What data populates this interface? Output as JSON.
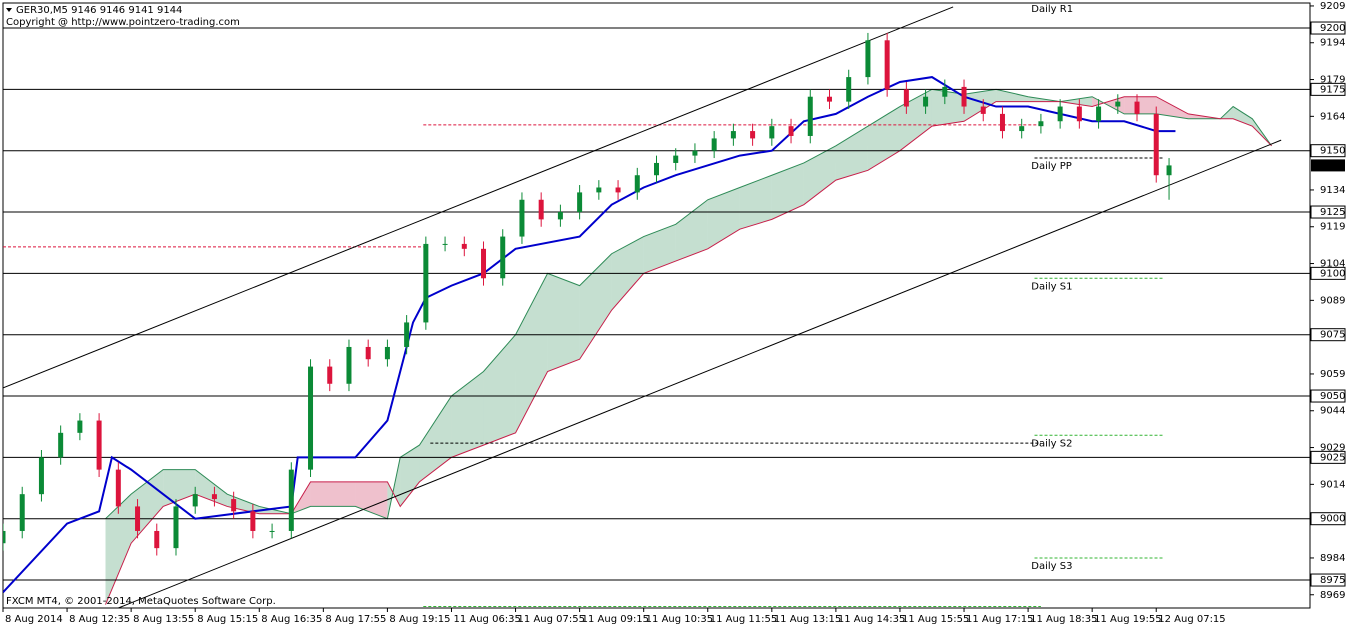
{
  "chart_data": {
    "type": "candlestick",
    "title": "GER30,M5  9146 9146 9141 9144",
    "subtitle": "Copyright @ http://www.pointzero-trading.com",
    "footer": "FXCM MT4, © 2001-2014, MetaQuotes Software Corp.",
    "up_color": "#0b8a36",
    "down_color": "#dc143c",
    "xlim": [
      0,
      204
    ],
    "ylim": [
      8963.6,
      9210.2
    ],
    "xticks": [
      {
        "value": 0,
        "label": "8 Aug 2014"
      },
      {
        "value": 10,
        "label": "8 Aug 12:35"
      },
      {
        "value": 20,
        "label": "8 Aug 13:55"
      },
      {
        "value": 30,
        "label": "8 Aug 15:15"
      },
      {
        "value": 40,
        "label": "8 Aug 16:35"
      },
      {
        "value": 50,
        "label": "8 Aug 17:55"
      },
      {
        "value": 60,
        "label": "8 Aug 19:15"
      },
      {
        "value": 70,
        "label": "11 Aug 06:35"
      },
      {
        "value": 80,
        "label": "11 Aug 07:55"
      },
      {
        "value": 90,
        "label": "11 Aug 09:15"
      },
      {
        "value": 100,
        "label": "11 Aug 10:35"
      },
      {
        "value": 110,
        "label": "11 Aug 11:55"
      },
      {
        "value": 120,
        "label": "11 Aug 13:15"
      },
      {
        "value": 130,
        "label": "11 Aug 14:35"
      },
      {
        "value": 140,
        "label": "11 Aug 15:55"
      },
      {
        "value": 150,
        "label": "11 Aug 17:15"
      },
      {
        "value": 160,
        "label": "11 Aug 18:35"
      },
      {
        "value": 170,
        "label": "11 Aug 19:55"
      },
      {
        "value": 180,
        "label": "12 Aug 07:15"
      }
    ],
    "yticks": [
      9209,
      9194,
      9179,
      9164,
      9134,
      9119,
      9104,
      9089,
      9059,
      9044,
      9029,
      9014,
      8984,
      8969
    ],
    "levels": [
      9200,
      9175,
      9150,
      9125,
      9100,
      9075,
      9050,
      9025,
      9000,
      8975
    ],
    "price": 9144,
    "x": [
      0,
      3,
      6,
      9,
      12,
      15,
      18,
      21,
      24,
      27,
      30,
      33,
      36,
      39,
      42,
      45,
      48,
      51,
      54,
      57,
      60,
      63,
      66,
      69,
      72,
      75,
      78,
      81,
      84,
      87,
      90,
      93,
      96,
      99,
      102,
      105,
      108,
      111,
      114,
      117,
      120,
      123,
      126,
      129,
      132,
      135,
      138,
      141,
      144,
      147,
      150,
      153,
      156,
      159,
      162,
      165,
      168,
      171,
      174,
      177,
      180,
      182
    ],
    "open": [
      8990,
      8995,
      9010,
      9025,
      9035,
      9040,
      9020,
      9005,
      8995,
      8988,
      9005,
      9010,
      9008,
      9003,
      8995,
      8995,
      9020,
      9062,
      9055,
      9070,
      9065,
      9070,
      9080,
      9112,
      9112,
      9110,
      9098,
      9115,
      9130,
      9122,
      9125,
      9133,
      9135,
      9133,
      9140,
      9145,
      9148,
      9150,
      9155,
      9158,
      9155,
      9160,
      9156,
      9172,
      9170,
      9180,
      9195,
      9175,
      9168,
      9172,
      9176,
      9168,
      9165,
      9158,
      9160,
      9162,
      9168,
      9162,
      9168,
      9170,
      9165,
      9140
    ],
    "high": [
      8998,
      9013,
      9028,
      9038,
      9043,
      9043,
      9023,
      9008,
      8998,
      9008,
      9013,
      9013,
      9011,
      9006,
      8998,
      9023,
      9065,
      9065,
      9073,
      9073,
      9073,
      9083,
      9115,
      9115,
      9115,
      9113,
      9118,
      9133,
      9133,
      9128,
      9136,
      9138,
      9138,
      9143,
      9148,
      9151,
      9153,
      9158,
      9161,
      9161,
      9163,
      9163,
      9175,
      9175,
      9183,
      9198,
      9198,
      9178,
      9175,
      9179,
      9179,
      9171,
      9168,
      9163,
      9165,
      9171,
      9171,
      9171,
      9173,
      9173,
      9168,
      9147
    ],
    "low": [
      8987,
      8992,
      9007,
      9022,
      9032,
      9017,
      9002,
      8992,
      8985,
      8985,
      9002,
      9005,
      9000,
      8992,
      8992,
      8992,
      9017,
      9052,
      9052,
      9062,
      9062,
      9067,
      9077,
      9109,
      9107,
      9095,
      9095,
      9112,
      9119,
      9119,
      9122,
      9130,
      9130,
      9130,
      9137,
      9142,
      9145,
      9147,
      9152,
      9152,
      9152,
      9153,
      9153,
      9167,
      9167,
      9177,
      9172,
      9165,
      9165,
      9169,
      9165,
      9162,
      9155,
      9155,
      9157,
      9159,
      9159,
      9159,
      9165,
      9162,
      9137,
      9130
    ],
    "close": [
      8995,
      9010,
      9025,
      9035,
      9040,
      9020,
      9005,
      8995,
      8988,
      9005,
      9010,
      9008,
      9003,
      8995,
      8995,
      9020,
      9062,
      9055,
      9070,
      9065,
      9070,
      9080,
      9112,
      9112,
      9110,
      9098,
      9115,
      9130,
      9122,
      9125,
      9133,
      9135,
      9133,
      9140,
      9145,
      9148,
      9150,
      9155,
      9158,
      9155,
      9160,
      9156,
      9172,
      9170,
      9180,
      9195,
      9175,
      9168,
      9172,
      9176,
      9168,
      9165,
      9158,
      9160,
      9162,
      9168,
      9162,
      9168,
      9170,
      9165,
      9140,
      9144
    ],
    "kijun": {
      "color": "#0000cc",
      "x": [
        0,
        10,
        15,
        17,
        20,
        25,
        30,
        45,
        46,
        55,
        60,
        62,
        64,
        66,
        70,
        75,
        80,
        90,
        95,
        100,
        105,
        115,
        120,
        125,
        130,
        135,
        140,
        145,
        150,
        155,
        160,
        170,
        175,
        180,
        183
      ],
      "values": [
        8970,
        8998,
        9003,
        9025,
        9020,
        9010,
        9000,
        9005,
        9025,
        9025,
        9040,
        9060,
        9080,
        9090,
        9095,
        9100,
        9110,
        9115,
        9128,
        9135,
        9140,
        9148,
        9150,
        9162,
        9165,
        9172,
        9178,
        9180,
        9172,
        9168,
        9168,
        9162,
        9162,
        9158,
        9158
      ]
    },
    "cloud": {
      "up_color": "#2e8b57",
      "down_color": "#c71f4a",
      "x": [
        16,
        20,
        25,
        30,
        35,
        40,
        45,
        48,
        55,
        60,
        62,
        65,
        70,
        75,
        80,
        85,
        90,
        95,
        100,
        105,
        110,
        115,
        120,
        125,
        130,
        135,
        140,
        145,
        150,
        155,
        160,
        165,
        170,
        175,
        180,
        185,
        190,
        192,
        195,
        198
      ],
      "span_a": [
        9000,
        9010,
        9020,
        9020,
        9010,
        9005,
        9002,
        9005,
        9005,
        9000,
        9025,
        9030,
        9050,
        9060,
        9075,
        9100,
        9095,
        9108,
        9115,
        9120,
        9130,
        9135,
        9140,
        9145,
        9152,
        9160,
        9168,
        9175,
        9173,
        9175,
        9172,
        9170,
        9172,
        9165,
        9165,
        9163,
        9163,
        9168,
        9163,
        9152
      ],
      "span_b": [
        8965,
        8990,
        9005,
        9010,
        9005,
        9002,
        9002,
        9015,
        9015,
        9015,
        9005,
        9015,
        9025,
        9030,
        9035,
        9060,
        9065,
        9085,
        9100,
        9105,
        9110,
        9118,
        9122,
        9128,
        9138,
        9142,
        9150,
        9160,
        9162,
        9170,
        9170,
        9170,
        9168,
        9172,
        9172,
        9165,
        9163,
        9163,
        9160,
        9152
      ]
    },
    "trendlines": [
      {
        "x": [
          0,
          148.3
        ],
        "y": [
          9053.3,
          9208.6
        ]
      },
      {
        "x": [
          18,
          199.5
        ],
        "y": [
          8963.6,
          9154.3
        ]
      }
    ],
    "pivots": [
      {
        "label": "Daily R1",
        "value": 9211,
        "color": "#dc143c"
      },
      {
        "label": "Daily PP",
        "value": 9147,
        "color": "#808080"
      },
      {
        "label": "Daily S1",
        "value": 9098,
        "color": "#32b432"
      },
      {
        "label": "Daily S2",
        "value": 9034,
        "color": "#32b432"
      },
      {
        "label": "Daily S3",
        "value": 8984,
        "color": "#32b432"
      }
    ],
    "hlines": [
      {
        "value": 9160.5,
        "from": 65.6,
        "to": 162,
        "color": "#dc143c"
      },
      {
        "value": 9110.8,
        "from": 0,
        "to": 65.6,
        "color": "#dc143c"
      },
      {
        "value": 9030.8,
        "from": 66.7,
        "to": 162,
        "color": "#000000"
      },
      {
        "value": 8964.2,
        "from": 65.6,
        "to": 162,
        "color": "#32b432"
      }
    ]
  }
}
